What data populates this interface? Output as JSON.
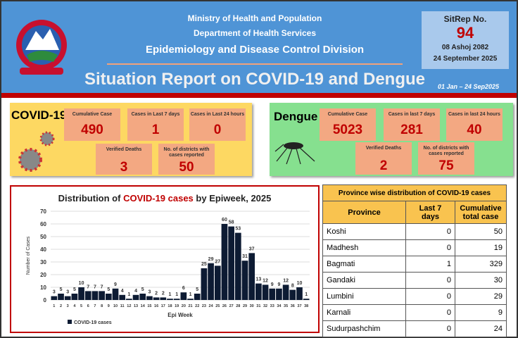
{
  "header": {
    "ministry": "Ministry of Health and Population",
    "department": "Department of Health Services",
    "division": "Epidemiology and Disease Control Division",
    "title": "Situation Report on COVID-19 and Dengue",
    "period": "01 Jan – 24 Sep2025",
    "colors": {
      "bg": "#4f94d6",
      "stripe": "#c00000"
    }
  },
  "sitrep": {
    "label": "SitRep No.",
    "number": "94",
    "nepali_date": "08 Ashoj 2082",
    "date": "24 September 2025"
  },
  "covid": {
    "title": "COVID-19",
    "stats": [
      {
        "label": "Cumulative Case",
        "value": "490"
      },
      {
        "label": "Cases in Last 7 days",
        "value": "1"
      },
      {
        "label": "Cases in Last 24 hours",
        "value": "0"
      },
      {
        "label": "Verified Deaths",
        "value": "3"
      },
      {
        "label": "No. of districts with cases reported",
        "value": "50"
      }
    ]
  },
  "dengue": {
    "title": "Dengue",
    "stats": [
      {
        "label": "Cumulative Case",
        "value": "5023"
      },
      {
        "label": "Cases in last 7 days",
        "value": "281"
      },
      {
        "label": "Cases in last 24 hours",
        "value": "40"
      },
      {
        "label": "Verified Deaths",
        "value": "2"
      },
      {
        "label": "No. of districts with cases reported",
        "value": "75"
      }
    ]
  },
  "chart_data": {
    "type": "bar",
    "title_pre": "Distribution of ",
    "title_hl": "COVID-19 cases",
    "title_post": " by Epiweek, 2025",
    "xlabel": "Epi Week",
    "ylabel": "Number of Cases",
    "ylim": [
      0,
      70
    ],
    "yticks": [
      0,
      10,
      20,
      30,
      40,
      50,
      60,
      70
    ],
    "grid": true,
    "legend": "bottom-left",
    "categories": [
      "1",
      "2",
      "3",
      "4",
      "5",
      "6",
      "7",
      "8",
      "9",
      "10",
      "11",
      "12",
      "13",
      "14",
      "15",
      "16",
      "17",
      "18",
      "19",
      "20",
      "21",
      "22",
      "23",
      "24",
      "25",
      "26",
      "27",
      "28",
      "29",
      "30",
      "31",
      "32",
      "33",
      "34",
      "35",
      "36",
      "37",
      "38"
    ],
    "series": [
      {
        "name": "COVID-19 cases",
        "color": "#0d1b33",
        "values": [
          3,
          5,
          3,
          5,
          10,
          7,
          7,
          7,
          5,
          9,
          4,
          1,
          4,
          5,
          3,
          2,
          2,
          1,
          1,
          6,
          1,
          5,
          25,
          29,
          27,
          60,
          58,
          53,
          31,
          37,
          13,
          12,
          9,
          9,
          12,
          8,
          10,
          1
        ]
      }
    ]
  },
  "table": {
    "title": "Province wise distribution of COVID-19 cases",
    "headers": [
      "Province",
      "Last 7 days",
      "Cumulative total case"
    ],
    "rows": [
      [
        "Koshi",
        "0",
        "50"
      ],
      [
        "Madhesh",
        "0",
        "19"
      ],
      [
        "Bagmati",
        "1",
        "329"
      ],
      [
        "Gandaki",
        "0",
        "30"
      ],
      [
        "Lumbini",
        "0",
        "29"
      ],
      [
        "Karnali",
        "0",
        "9"
      ],
      [
        "Sudurpashchim",
        "0",
        "24"
      ]
    ]
  }
}
